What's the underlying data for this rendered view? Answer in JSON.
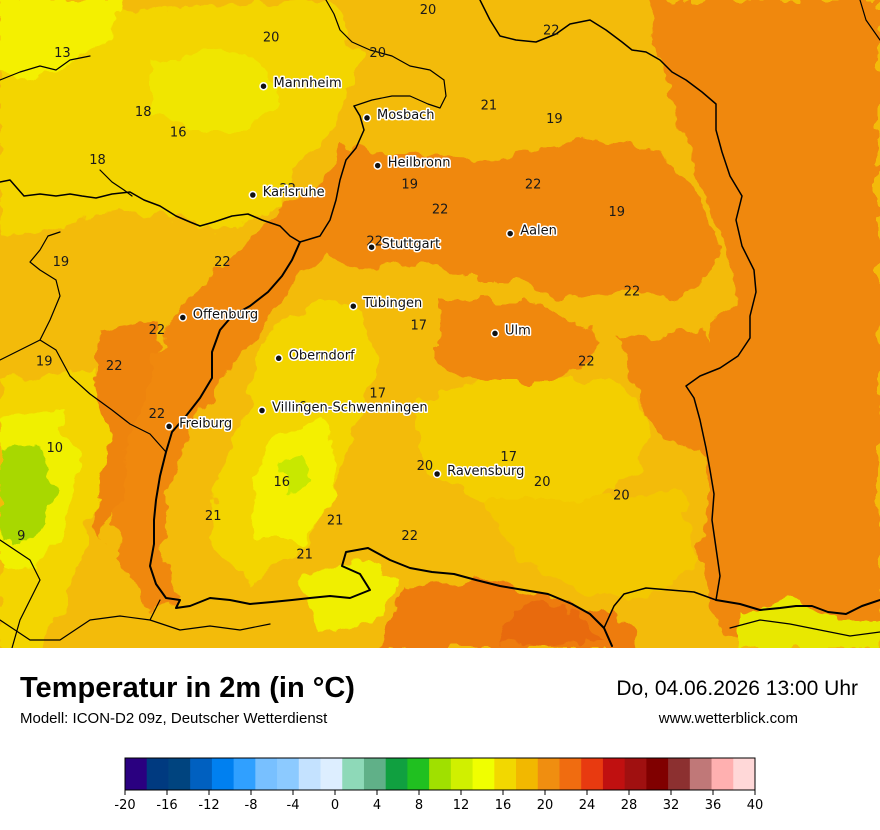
{
  "title": "Temperatur in 2m (in °C)",
  "subtitle": "Modell: ICON-D2 09z, Deutscher Wetterdienst",
  "datetime": "Do, 04.06.2026 13:00 Uhr",
  "website": "www.wetterblick.com",
  "cities": [
    {
      "name": "Mannheim",
      "lon": 8.47,
      "lat": 49.49
    },
    {
      "name": "Mosbach",
      "lon": 9.15,
      "lat": 49.35
    },
    {
      "name": "Heilbronn",
      "lon": 9.22,
      "lat": 49.14
    },
    {
      "name": "Karlsruhe",
      "lon": 8.4,
      "lat": 49.01
    },
    {
      "name": "Aalen",
      "lon": 10.09,
      "lat": 48.84
    },
    {
      "name": "Stuttgart",
      "lon": 9.18,
      "lat": 48.78
    },
    {
      "name": "Tübingen",
      "lon": 9.06,
      "lat": 48.52
    },
    {
      "name": "Offenburg",
      "lon": 7.94,
      "lat": 48.47
    },
    {
      "name": "Ulm",
      "lon": 9.99,
      "lat": 48.4
    },
    {
      "name": "Oberndorf",
      "lon": 8.57,
      "lat": 48.29
    },
    {
      "name": "Villingen-Schwenningen",
      "lon": 8.46,
      "lat": 48.06
    },
    {
      "name": "Freiburg",
      "lon": 7.85,
      "lat": 47.99
    },
    {
      "name": "Ravensburg",
      "lon": 9.61,
      "lat": 47.78
    }
  ],
  "point_values": [
    {
      "value": "20",
      "lon": 9.55,
      "lat": 49.83
    },
    {
      "value": "22",
      "lon": 10.36,
      "lat": 49.74
    },
    {
      "value": "13",
      "lon": 7.15,
      "lat": 49.64
    },
    {
      "value": "20",
      "lon": 8.52,
      "lat": 49.71
    },
    {
      "value": "20",
      "lon": 9.22,
      "lat": 49.64
    },
    {
      "value": "21",
      "lon": 9.95,
      "lat": 49.41
    },
    {
      "value": "19",
      "lon": 10.38,
      "lat": 49.35
    },
    {
      "value": "18",
      "lon": 7.68,
      "lat": 49.38
    },
    {
      "value": "16",
      "lon": 7.91,
      "lat": 49.29
    },
    {
      "value": "18",
      "lon": 7.38,
      "lat": 49.17
    },
    {
      "value": "22",
      "lon": 8.63,
      "lat": 49.04
    },
    {
      "value": "19",
      "lon": 9.43,
      "lat": 49.06
    },
    {
      "value": "22",
      "lon": 10.24,
      "lat": 49.06
    },
    {
      "value": "22",
      "lon": 9.63,
      "lat": 48.95
    },
    {
      "value": "19",
      "lon": 10.79,
      "lat": 48.94
    },
    {
      "value": "22",
      "lon": 9.2,
      "lat": 48.81
    },
    {
      "value": "19",
      "lon": 7.14,
      "lat": 48.72
    },
    {
      "value": "22",
      "lon": 8.2,
      "lat": 48.72
    },
    {
      "value": "22",
      "lon": 10.89,
      "lat": 48.59
    },
    {
      "value": "22",
      "lon": 7.77,
      "lat": 48.42
    },
    {
      "value": "17",
      "lon": 9.49,
      "lat": 48.44
    },
    {
      "value": "19",
      "lon": 7.03,
      "lat": 48.28
    },
    {
      "value": "22",
      "lon": 7.49,
      "lat": 48.26
    },
    {
      "value": "22",
      "lon": 10.59,
      "lat": 48.28
    },
    {
      "value": "17",
      "lon": 9.22,
      "lat": 48.14
    },
    {
      "value": "22",
      "lon": 7.77,
      "lat": 48.05
    },
    {
      "value": "16",
      "lon": 8.7,
      "lat": 48.08
    },
    {
      "value": "10",
      "lon": 7.1,
      "lat": 47.9
    },
    {
      "value": "17",
      "lon": 10.08,
      "lat": 47.86
    },
    {
      "value": "20",
      "lon": 9.53,
      "lat": 47.82
    },
    {
      "value": "16",
      "lon": 8.59,
      "lat": 47.75
    },
    {
      "value": "20",
      "lon": 10.3,
      "lat": 47.75
    },
    {
      "value": "20",
      "lon": 10.82,
      "lat": 47.69
    },
    {
      "value": "21",
      "lon": 8.14,
      "lat": 47.6
    },
    {
      "value": "21",
      "lon": 8.94,
      "lat": 47.58
    },
    {
      "value": "22",
      "lon": 9.43,
      "lat": 47.51
    },
    {
      "value": "9",
      "lon": 6.88,
      "lat": 47.51
    },
    {
      "value": "21",
      "lon": 8.74,
      "lat": 47.43
    }
  ],
  "legend": {
    "ticks": [
      "-20",
      "-16",
      "-12",
      "-8",
      "-4",
      "0",
      "4",
      "8",
      "12",
      "16",
      "20",
      "24",
      "28",
      "32",
      "36",
      "40"
    ],
    "colors": [
      "#2a0080",
      "#003a80",
      "#00447f",
      "#0060c0",
      "#0080f0",
      "#30a0ff",
      "#78c0ff",
      "#8ccaff",
      "#c4e2ff",
      "#ddeeff",
      "#8ed9b8",
      "#60b088",
      "#10a040",
      "#20c020",
      "#a0e000",
      "#d0f000",
      "#f0ff00",
      "#f2d800",
      "#f2b800",
      "#f08e10",
      "#f06c10",
      "#e83a10",
      "#c01010",
      "#a01010",
      "#800000",
      "#8c3030",
      "#c07878",
      "#ffb0b0",
      "#ffd8d8"
    ]
  },
  "colors": {
    "orange": "#f0880c",
    "yellow_orange": "#f3b80c",
    "yellow": "#f3d500",
    "light_yellow": "#f4f000",
    "green_yellow": "#c8e800",
    "green": "#8fd000",
    "red_orange": "#e86a10",
    "border": "#000000"
  }
}
